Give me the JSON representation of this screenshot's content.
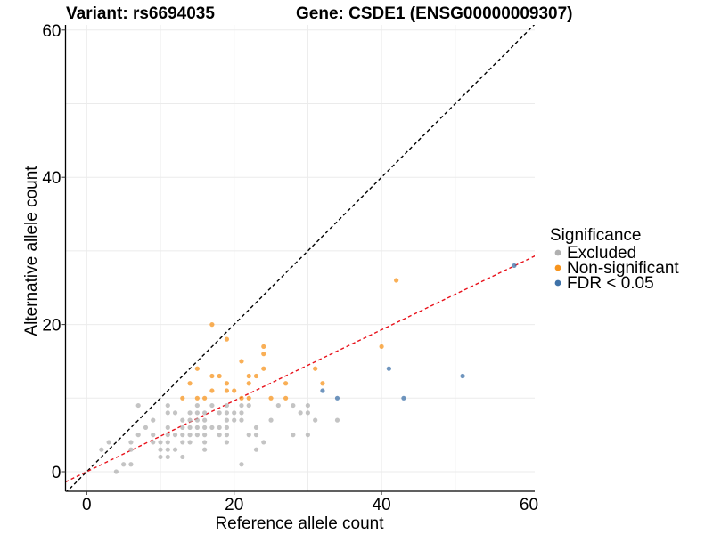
{
  "chart_data": {
    "type": "scatter",
    "title_left": "Variant: rs6694035",
    "title_right": "Gene: CSDE1 (ENSG00000009307)",
    "xlabel": "Reference allele count",
    "ylabel": "Alternative allele count",
    "xlim": [
      -2.9,
      60.6
    ],
    "ylim": [
      -2.7,
      60.6
    ],
    "x_ticks": [
      0,
      20,
      40,
      60
    ],
    "y_ticks": [
      0,
      20,
      40,
      60
    ],
    "x_tick_labels": [
      "0",
      "20",
      "40",
      "60"
    ],
    "y_tick_labels": [
      "0",
      "20",
      "40",
      "60"
    ],
    "grid": true,
    "reference_lines": [
      {
        "name": "identity",
        "slope": 1,
        "intercept": 0,
        "color": "#000000",
        "style": "dashed"
      },
      {
        "name": "fit",
        "slope": 0.482,
        "intercept": 0,
        "color": "#e8111a",
        "style": "dashed"
      }
    ],
    "legend": {
      "title": "Significance",
      "placement": "right",
      "entries": [
        {
          "label": "Excluded",
          "color": "#b0b0b0"
        },
        {
          "label": "Non-significant",
          "color": "#f7941d"
        },
        {
          "label": "FDR < 0.05",
          "color": "#3f72a8"
        }
      ]
    },
    "series": [
      {
        "name": "Excluded",
        "color": "#b0b0b0",
        "points": [
          [
            7,
            9
          ],
          [
            11,
            9
          ],
          [
            15,
            9
          ],
          [
            17,
            9
          ],
          [
            19,
            9
          ],
          [
            21,
            9
          ],
          [
            22,
            9
          ],
          [
            26,
            9
          ],
          [
            28,
            9
          ],
          [
            30,
            9
          ],
          [
            11,
            8
          ],
          [
            12,
            8
          ],
          [
            14,
            8
          ],
          [
            15,
            8
          ],
          [
            16,
            8
          ],
          [
            18,
            8
          ],
          [
            19,
            8
          ],
          [
            20,
            8
          ],
          [
            21,
            8
          ],
          [
            29,
            8
          ],
          [
            30,
            8
          ],
          [
            9,
            7
          ],
          [
            13,
            7
          ],
          [
            14,
            7
          ],
          [
            15,
            7
          ],
          [
            16,
            7
          ],
          [
            19,
            7
          ],
          [
            20,
            7
          ],
          [
            21,
            7
          ],
          [
            25,
            7
          ],
          [
            31,
            7
          ],
          [
            34,
            7
          ],
          [
            8,
            6
          ],
          [
            11,
            6
          ],
          [
            13,
            6
          ],
          [
            14,
            6
          ],
          [
            15,
            6
          ],
          [
            16,
            6
          ],
          [
            17,
            6
          ],
          [
            18,
            6
          ],
          [
            19,
            6
          ],
          [
            23,
            6
          ],
          [
            7,
            5
          ],
          [
            9,
            5
          ],
          [
            11,
            5
          ],
          [
            12,
            5
          ],
          [
            13,
            5
          ],
          [
            14,
            5
          ],
          [
            15,
            5
          ],
          [
            16,
            5
          ],
          [
            18,
            5
          ],
          [
            19,
            5
          ],
          [
            22,
            5
          ],
          [
            23,
            5
          ],
          [
            28,
            5
          ],
          [
            30,
            5
          ],
          [
            3,
            4
          ],
          [
            6,
            4
          ],
          [
            9,
            4
          ],
          [
            10,
            4
          ],
          [
            11,
            4
          ],
          [
            13,
            4
          ],
          [
            14,
            4
          ],
          [
            16,
            4
          ],
          [
            19,
            4
          ],
          [
            24,
            4
          ],
          [
            2,
            3
          ],
          [
            6,
            3
          ],
          [
            10,
            3
          ],
          [
            11,
            3
          ],
          [
            12,
            3
          ],
          [
            16,
            3
          ],
          [
            23,
            3
          ],
          [
            10,
            2
          ],
          [
            11,
            2
          ],
          [
            13,
            2
          ],
          [
            5,
            1
          ],
          [
            6,
            1
          ],
          [
            21,
            1
          ],
          [
            4,
            0
          ]
        ]
      },
      {
        "name": "Non-significant",
        "color": "#f7941d",
        "points": [
          [
            17,
            20
          ],
          [
            19,
            18
          ],
          [
            24,
            17
          ],
          [
            24,
            16
          ],
          [
            21,
            15
          ],
          [
            15,
            14
          ],
          [
            24,
            14
          ],
          [
            31,
            14
          ],
          [
            17,
            13
          ],
          [
            18,
            13
          ],
          [
            22,
            13
          ],
          [
            23,
            13
          ],
          [
            14,
            12
          ],
          [
            19,
            12
          ],
          [
            22,
            12
          ],
          [
            27,
            12
          ],
          [
            32,
            12
          ],
          [
            17,
            11
          ],
          [
            19,
            11
          ],
          [
            20,
            11
          ],
          [
            13,
            10
          ],
          [
            15,
            10
          ],
          [
            16,
            10
          ],
          [
            21,
            10
          ],
          [
            22,
            10
          ],
          [
            25,
            10
          ],
          [
            27,
            10
          ],
          [
            40,
            17
          ],
          [
            42,
            26
          ]
        ]
      },
      {
        "name": "FDR < 0.05",
        "color": "#3f72a8",
        "points": [
          [
            58,
            28
          ],
          [
            41,
            14
          ],
          [
            51,
            13
          ],
          [
            32,
            11
          ],
          [
            34,
            10
          ],
          [
            43,
            10
          ]
        ]
      }
    ]
  }
}
